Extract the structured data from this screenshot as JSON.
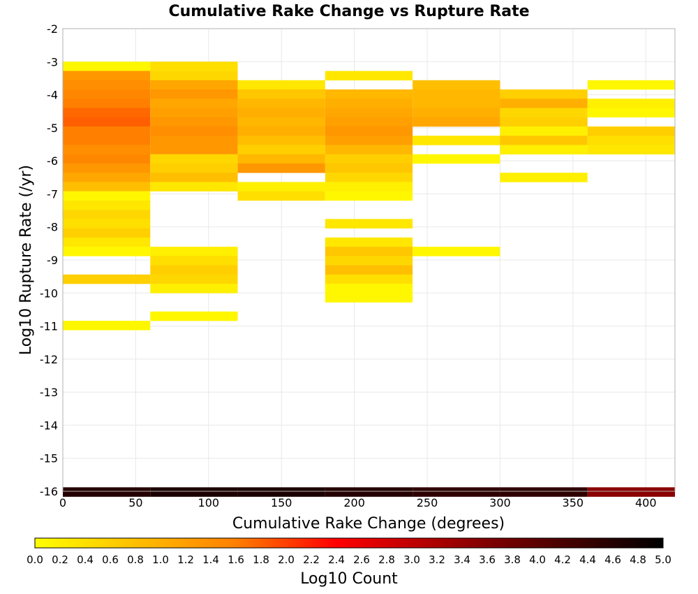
{
  "chart_data": {
    "type": "heatmap",
    "title": "Cumulative Rake Change vs Rupture Rate",
    "xlabel": "Cumulative Rake Change (degrees)",
    "ylabel": "Log10 Rupture Rate (/yr)",
    "xlim": [
      0,
      420
    ],
    "ylim": [
      -16,
      -2
    ],
    "x_ticks": [
      "0",
      "50",
      "100",
      "150",
      "200",
      "250",
      "300",
      "350",
      "400"
    ],
    "y_ticks": [
      "-2",
      "-3",
      "-4",
      "-5",
      "-6",
      "-7",
      "-8",
      "-9",
      "-10",
      "-11",
      "-12",
      "-13",
      "-14",
      "-15",
      "-16"
    ],
    "grid": true,
    "x_bin_width": 60,
    "y_bin_height": 0.28,
    "colorbar": {
      "label": "Log10 Count",
      "min": 0.0,
      "max": 5.0,
      "ticks": [
        "0.0",
        "0.2",
        "0.4",
        "0.6",
        "0.8",
        "1.0",
        "1.2",
        "1.4",
        "1.6",
        "1.8",
        "2.0",
        "2.2",
        "2.4",
        "2.6",
        "2.8",
        "3.0",
        "3.2",
        "3.4",
        "3.6",
        "3.8",
        "4.0",
        "4.2",
        "4.4",
        "4.6",
        "4.8",
        "5.0"
      ],
      "stops": [
        {
          "v": 0.0,
          "c": "#ffff00"
        },
        {
          "v": 0.8,
          "c": "#ffbf00"
        },
        {
          "v": 1.6,
          "c": "#ff7f00"
        },
        {
          "v": 2.4,
          "c": "#ff0000"
        },
        {
          "v": 3.6,
          "c": "#800000"
        },
        {
          "v": 5.0,
          "c": "#000000"
        }
      ]
    },
    "columns": [
      {
        "x": 0,
        "cells": [
          {
            "y": -3.0,
            "v": 0.1
          },
          {
            "y": -3.28,
            "v": 1.3
          },
          {
            "y": -3.56,
            "v": 1.4
          },
          {
            "y": -3.84,
            "v": 1.5
          },
          {
            "y": -4.12,
            "v": 1.6
          },
          {
            "y": -4.4,
            "v": 1.75
          },
          {
            "y": -4.68,
            "v": 1.8
          },
          {
            "y": -4.96,
            "v": 1.6
          },
          {
            "y": -5.24,
            "v": 1.6
          },
          {
            "y": -5.52,
            "v": 1.4
          },
          {
            "y": -5.8,
            "v": 1.5
          },
          {
            "y": -6.08,
            "v": 1.3
          },
          {
            "y": -6.36,
            "v": 1.1
          },
          {
            "y": -6.64,
            "v": 0.8
          },
          {
            "y": -6.92,
            "v": 0.1
          },
          {
            "y": -7.2,
            "v": 0.3
          },
          {
            "y": -7.48,
            "v": 0.5
          },
          {
            "y": -7.76,
            "v": 0.4
          },
          {
            "y": -8.04,
            "v": 0.6
          },
          {
            "y": -8.32,
            "v": 0.3
          },
          {
            "y": -8.6,
            "v": 0.1
          },
          {
            "y": -9.44,
            "v": 0.6
          },
          {
            "y": -10.84,
            "v": 0.1
          },
          {
            "y": -15.88,
            "v": 4.6
          }
        ]
      },
      {
        "x": 60,
        "cells": [
          {
            "y": -3.0,
            "v": 0.4
          },
          {
            "y": -3.28,
            "v": 0.5
          },
          {
            "y": -3.56,
            "v": 1.1
          },
          {
            "y": -3.84,
            "v": 1.3
          },
          {
            "y": -4.12,
            "v": 1.1
          },
          {
            "y": -4.4,
            "v": 1.2
          },
          {
            "y": -4.68,
            "v": 1.3
          },
          {
            "y": -4.96,
            "v": 1.4
          },
          {
            "y": -5.24,
            "v": 1.3
          },
          {
            "y": -5.52,
            "v": 1.3
          },
          {
            "y": -5.8,
            "v": 0.5
          },
          {
            "y": -6.08,
            "v": 0.6
          },
          {
            "y": -6.36,
            "v": 0.8
          },
          {
            "y": -6.64,
            "v": 0.3
          },
          {
            "y": -8.6,
            "v": 0.2
          },
          {
            "y": -8.88,
            "v": 0.4
          },
          {
            "y": -9.16,
            "v": 0.6
          },
          {
            "y": -9.44,
            "v": 0.5
          },
          {
            "y": -9.72,
            "v": 0.2
          },
          {
            "y": -10.56,
            "v": 0.1
          },
          {
            "y": -15.88,
            "v": 4.7
          }
        ]
      },
      {
        "x": 120,
        "cells": [
          {
            "y": -3.56,
            "v": 0.3
          },
          {
            "y": -3.84,
            "v": 0.7
          },
          {
            "y": -4.12,
            "v": 0.9
          },
          {
            "y": -4.4,
            "v": 1.0
          },
          {
            "y": -4.68,
            "v": 0.9
          },
          {
            "y": -4.96,
            "v": 1.0
          },
          {
            "y": -5.24,
            "v": 0.8
          },
          {
            "y": -5.52,
            "v": 0.6
          },
          {
            "y": -5.8,
            "v": 0.9
          },
          {
            "y": -6.08,
            "v": 1.3
          },
          {
            "y": -6.64,
            "v": 0.2
          },
          {
            "y": -6.92,
            "v": 0.4
          },
          {
            "y": -15.88,
            "v": 4.7
          }
        ]
      },
      {
        "x": 180,
        "cells": [
          {
            "y": -3.28,
            "v": 0.3
          },
          {
            "y": -3.84,
            "v": 0.9
          },
          {
            "y": -4.12,
            "v": 1.0
          },
          {
            "y": -4.4,
            "v": 1.1
          },
          {
            "y": -4.68,
            "v": 1.2
          },
          {
            "y": -4.96,
            "v": 1.3
          },
          {
            "y": -5.24,
            "v": 1.2
          },
          {
            "y": -5.52,
            "v": 0.9
          },
          {
            "y": -5.8,
            "v": 0.6
          },
          {
            "y": -6.08,
            "v": 0.7
          },
          {
            "y": -6.36,
            "v": 0.5
          },
          {
            "y": -6.64,
            "v": 0.2
          },
          {
            "y": -6.92,
            "v": 0.1
          },
          {
            "y": -7.76,
            "v": 0.3
          },
          {
            "y": -8.32,
            "v": 0.3
          },
          {
            "y": -8.6,
            "v": 0.7
          },
          {
            "y": -8.88,
            "v": 0.5
          },
          {
            "y": -9.16,
            "v": 0.8
          },
          {
            "y": -9.44,
            "v": 0.4
          },
          {
            "y": -9.72,
            "v": 0.1
          },
          {
            "y": -10.0,
            "v": 0.1
          },
          {
            "y": -15.88,
            "v": 4.6
          }
        ]
      },
      {
        "x": 240,
        "cells": [
          {
            "y": -3.56,
            "v": 0.8
          },
          {
            "y": -3.84,
            "v": 0.9
          },
          {
            "y": -4.12,
            "v": 0.9
          },
          {
            "y": -4.4,
            "v": 1.0
          },
          {
            "y": -4.68,
            "v": 1.1
          },
          {
            "y": -5.24,
            "v": 0.3
          },
          {
            "y": -5.8,
            "v": 0.1
          },
          {
            "y": -8.6,
            "v": 0.1
          },
          {
            "y": -15.88,
            "v": 4.5
          }
        ]
      },
      {
        "x": 300,
        "cells": [
          {
            "y": -3.84,
            "v": 0.6
          },
          {
            "y": -4.12,
            "v": 1.0
          },
          {
            "y": -4.4,
            "v": 0.5
          },
          {
            "y": -4.68,
            "v": 0.6
          },
          {
            "y": -4.96,
            "v": 0.2
          },
          {
            "y": -5.24,
            "v": 0.7
          },
          {
            "y": -5.52,
            "v": 0.2
          },
          {
            "y": -6.36,
            "v": 0.2
          },
          {
            "y": -15.88,
            "v": 4.5
          }
        ]
      },
      {
        "x": 360,
        "cells": [
          {
            "y": -3.56,
            "v": 0.1
          },
          {
            "y": -4.12,
            "v": 0.2
          },
          {
            "y": -4.4,
            "v": 0.1
          },
          {
            "y": -4.96,
            "v": 0.6
          },
          {
            "y": -5.24,
            "v": 0.4
          },
          {
            "y": -5.52,
            "v": 0.3
          },
          {
            "y": -15.88,
            "v": 3.5
          }
        ]
      }
    ]
  }
}
